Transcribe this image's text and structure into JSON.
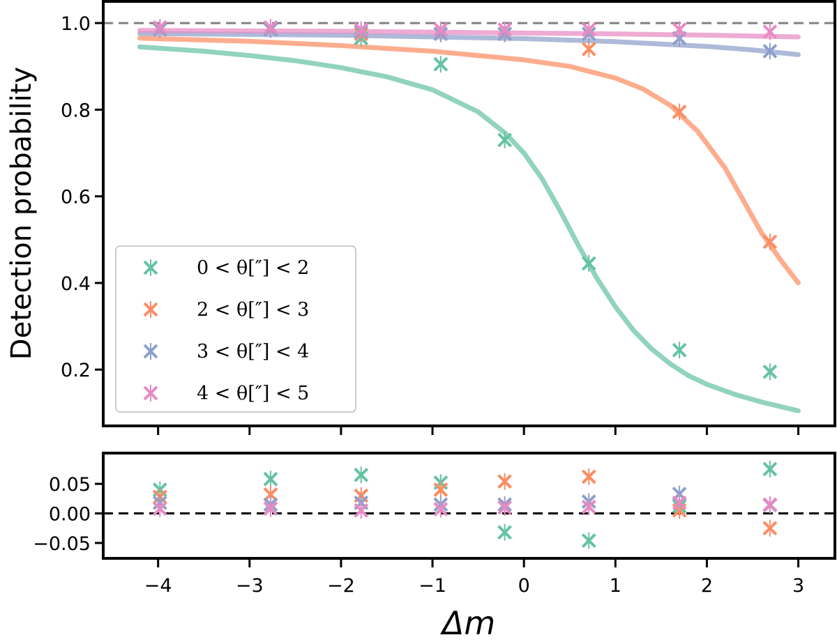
{
  "chart_data": [
    {
      "type": "scatter",
      "panel": "main",
      "ylabel": "Detection probability",
      "xlabel": "",
      "xlim": [
        -4.6,
        3.4
      ],
      "ylim": [
        0.07,
        1.05
      ],
      "yticks": [
        0.2,
        0.4,
        0.6,
        0.8,
        1.0
      ],
      "ytick_labels": [
        "0.2",
        "0.4",
        "0.6",
        "0.8",
        "1.0"
      ],
      "xticks": [
        -4,
        -3,
        -2,
        -1,
        0,
        1,
        2,
        3
      ],
      "reference_line": {
        "y": 1.0,
        "style": "dashed",
        "color": "#808080"
      },
      "x": [
        -3.98,
        -2.77,
        -1.78,
        -0.91,
        -0.21,
        0.71,
        1.7,
        2.69
      ],
      "series": [
        {
          "name": "0 < θ[″] < 2",
          "color": "#66c2a5",
          "values": [
            0.985,
            0.985,
            0.965,
            0.905,
            0.73,
            0.445,
            0.245,
            0.195
          ],
          "fit": {
            "x": [
              -4.2,
              -3.5,
              -3.0,
              -2.5,
              -2.0,
              -1.5,
              -1.0,
              -0.5,
              -0.2,
              0.0,
              0.2,
              0.4,
              0.6,
              0.8,
              1.0,
              1.2,
              1.4,
              1.6,
              1.8,
              2.0,
              2.3,
              2.6,
              3.0
            ],
            "y": [
              0.945,
              0.935,
              0.925,
              0.913,
              0.897,
              0.876,
              0.846,
              0.795,
              0.745,
              0.7,
              0.64,
              0.565,
              0.485,
              0.41,
              0.345,
              0.29,
              0.247,
              0.213,
              0.186,
              0.166,
              0.143,
              0.125,
              0.105
            ]
          }
        },
        {
          "name": "2 < θ[″] < 3",
          "color": "#fc8d62",
          "values": [
            0.985,
            0.985,
            0.975,
            0.975,
            0.975,
            0.94,
            0.795,
            0.495
          ],
          "fit": {
            "x": [
              -4.2,
              -3.0,
              -2.0,
              -1.0,
              0.0,
              0.5,
              1.0,
              1.3,
              1.6,
              1.9,
              2.2,
              2.4,
              2.6,
              2.8,
              3.0
            ],
            "y": [
              0.965,
              0.958,
              0.948,
              0.935,
              0.915,
              0.9,
              0.873,
              0.848,
              0.81,
              0.75,
              0.665,
              0.59,
              0.515,
              0.455,
              0.4
            ]
          }
        },
        {
          "name": "3 < θ[″] < 4",
          "color": "#8da0cb",
          "values": [
            0.985,
            0.985,
            0.98,
            0.975,
            0.975,
            0.975,
            0.965,
            0.935
          ],
          "fit": {
            "x": [
              -4.2,
              -2.0,
              0.0,
              1.0,
              2.0,
              2.5,
              3.0
            ],
            "y": [
              0.976,
              0.972,
              0.964,
              0.957,
              0.946,
              0.938,
              0.927
            ]
          }
        },
        {
          "name": "4 < θ[″] < 5",
          "color": "#e78ac3",
          "values": [
            0.99,
            0.99,
            0.985,
            0.985,
            0.985,
            0.985,
            0.985,
            0.98
          ],
          "fit": {
            "x": [
              -4.2,
              -2.0,
              0.0,
              1.0,
              2.0,
              3.0
            ],
            "y": [
              0.983,
              0.981,
              0.977,
              0.975,
              0.972,
              0.968
            ]
          }
        }
      ],
      "legend": {
        "position": "lower-left",
        "entries": [
          "0 < θ[″] < 2",
          "2 < θ[″] < 3",
          "3 < θ[″] < 4",
          "4 < θ[″] < 5"
        ]
      }
    },
    {
      "type": "scatter",
      "panel": "residuals",
      "xlabel": "Δm",
      "ylabel": "",
      "xlim": [
        -4.6,
        3.4
      ],
      "ylim": [
        -0.076,
        0.102
      ],
      "yticks": [
        -0.05,
        0.0,
        0.05
      ],
      "ytick_labels": [
        "−0.05",
        "0.00",
        "0.05"
      ],
      "xticks": [
        -4,
        -3,
        -2,
        -1,
        0,
        1,
        2,
        3
      ],
      "xtick_labels": [
        "−4",
        "−3",
        "−2",
        "−1",
        "0",
        "1",
        "2",
        "3"
      ],
      "reference_line": {
        "y": 0.0,
        "style": "dashed",
        "color": "#000000"
      },
      "x": [
        -3.98,
        -2.77,
        -1.78,
        -0.91,
        -0.21,
        0.71,
        1.7,
        2.69
      ],
      "series": [
        {
          "name": "0 < θ[″] < 2",
          "color": "#66c2a5",
          "values": [
            0.04,
            0.058,
            0.065,
            0.052,
            -0.032,
            -0.046,
            0.012,
            0.075
          ]
        },
        {
          "name": "2 < θ[″] < 3",
          "color": "#fc8d62",
          "values": [
            0.028,
            0.032,
            0.03,
            0.04,
            0.054,
            0.062,
            0.005,
            -0.025
          ]
        },
        {
          "name": "3 < θ[″] < 4",
          "color": "#8da0cb",
          "values": [
            0.018,
            0.015,
            0.018,
            0.015,
            0.015,
            0.02,
            0.033,
            0.014
          ]
        },
        {
          "name": "4 < θ[″] < 5",
          "color": "#e78ac3",
          "values": [
            0.008,
            0.008,
            0.005,
            0.007,
            0.01,
            0.011,
            0.018,
            0.015
          ]
        }
      ]
    }
  ]
}
